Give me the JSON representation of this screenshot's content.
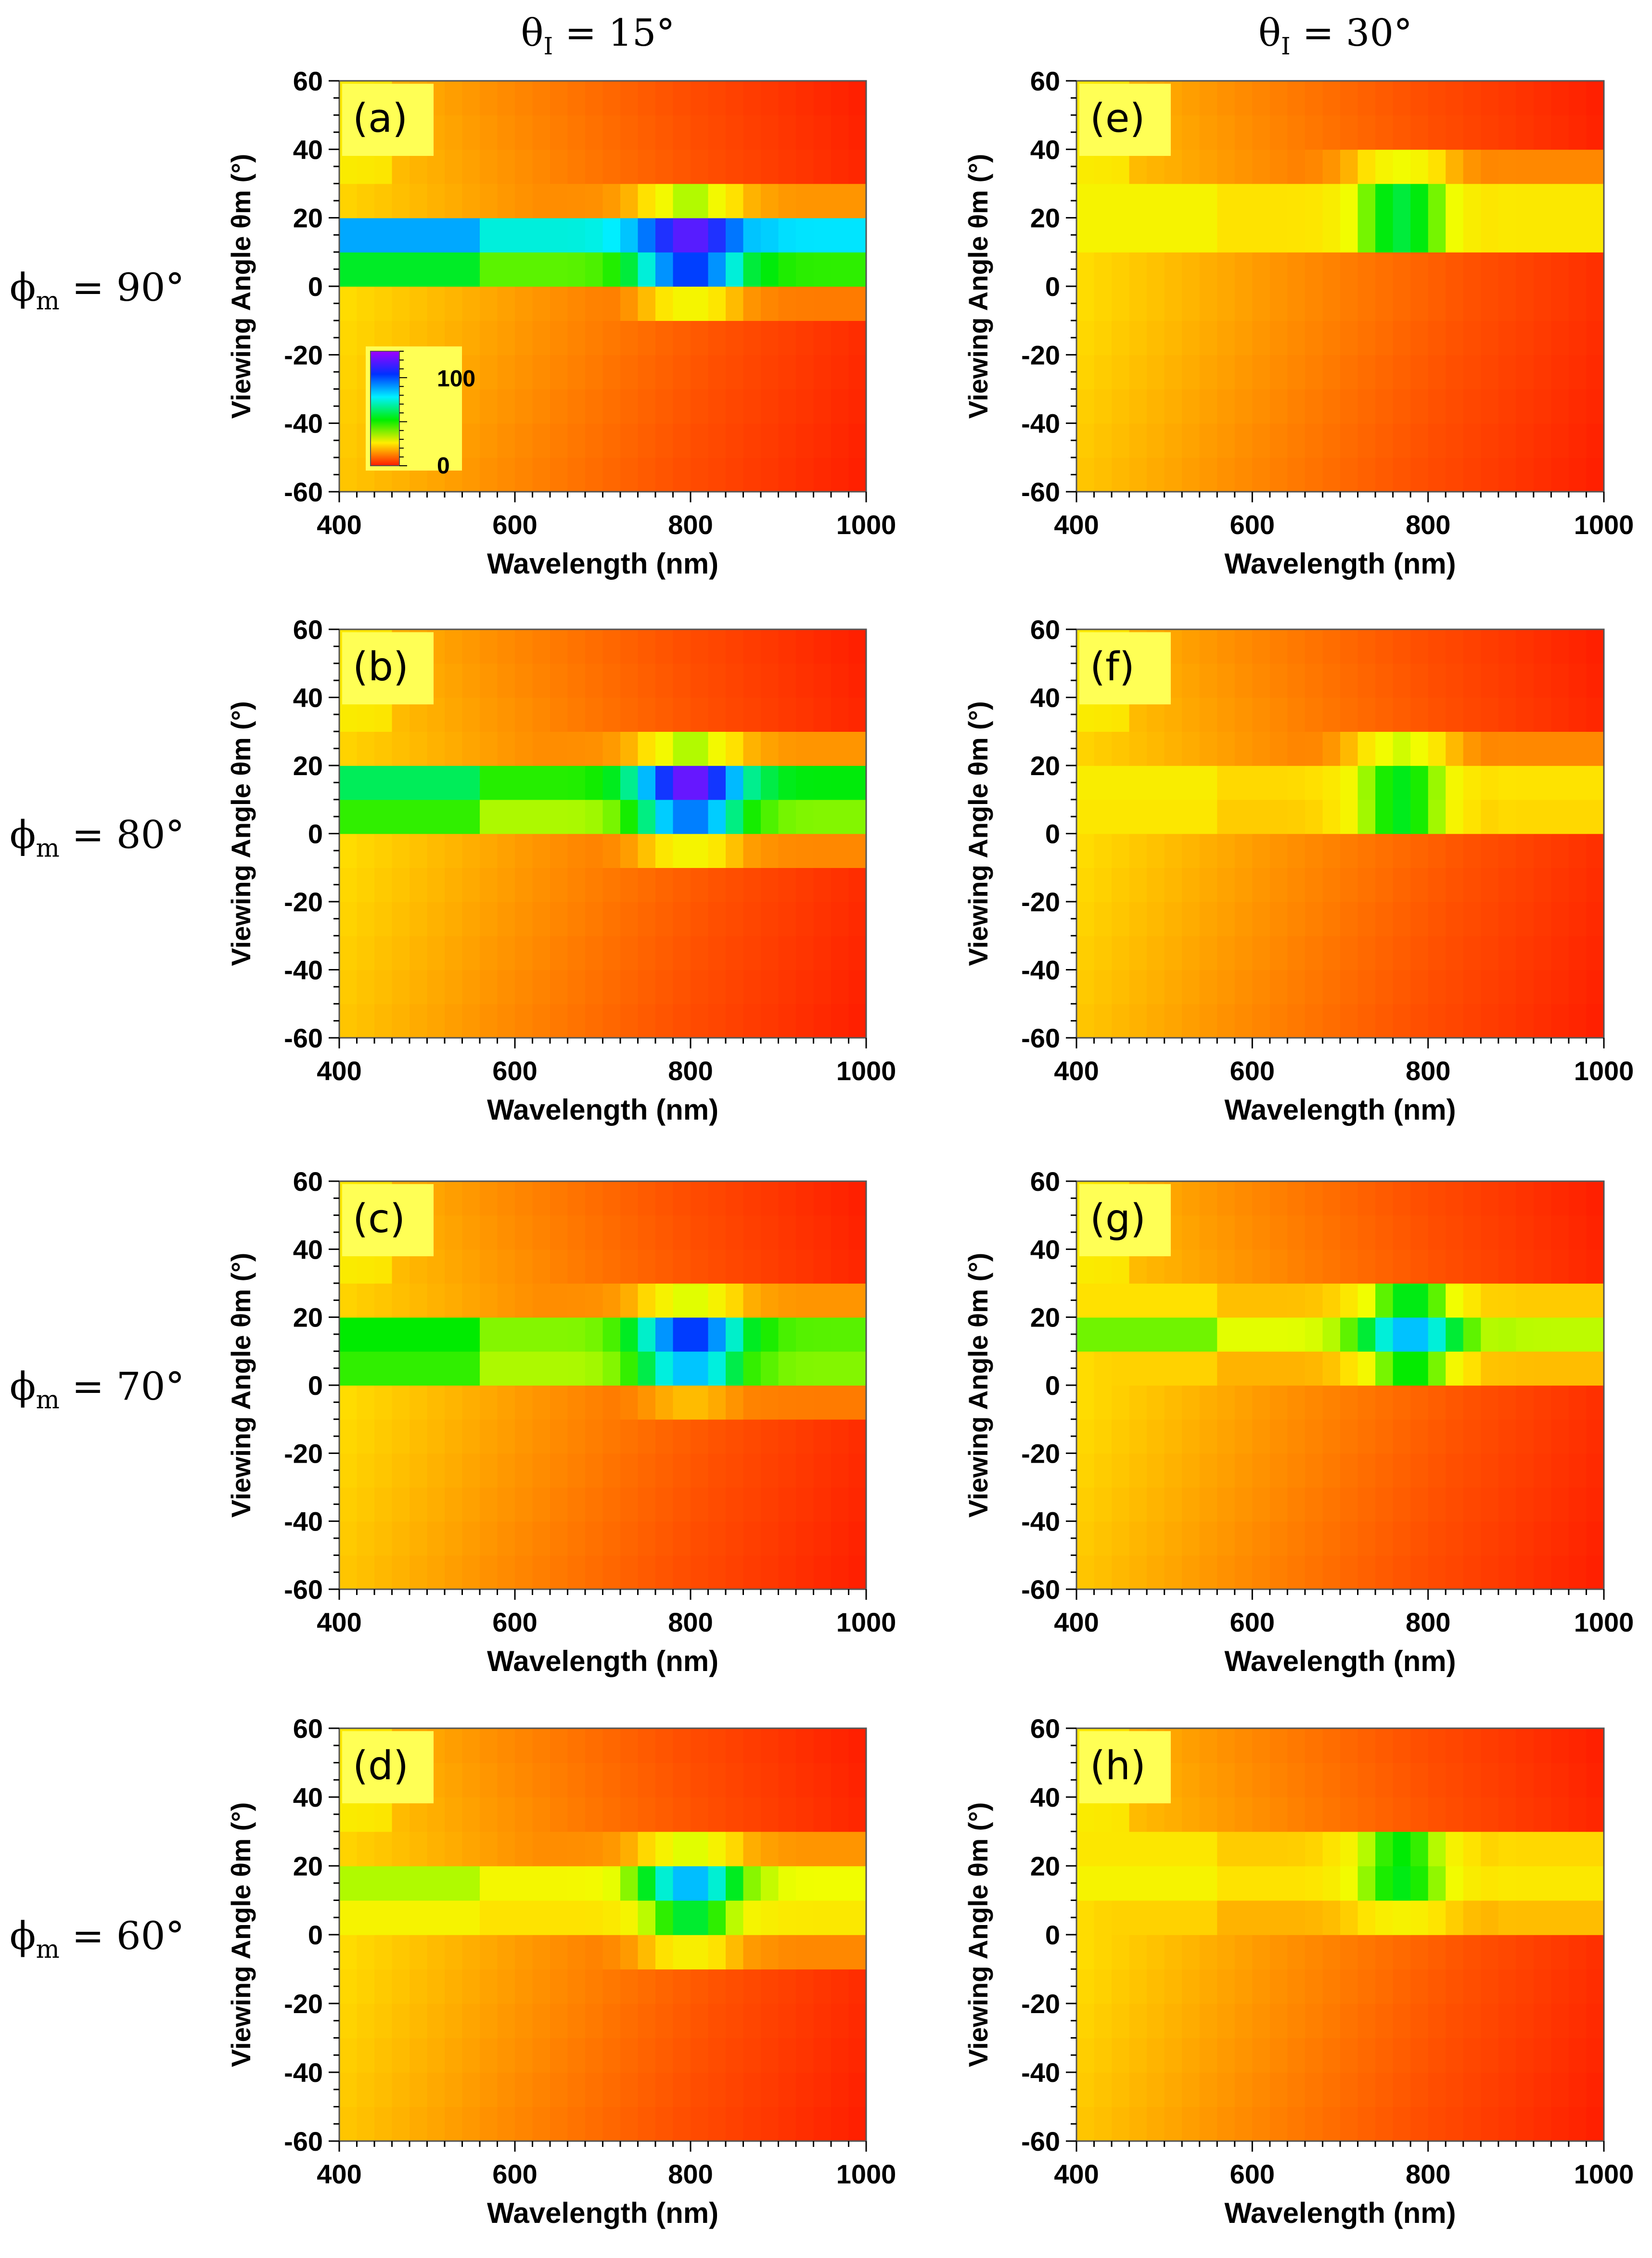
{
  "figure": {
    "column_headers": [
      "θ = 15°",
      "θ = 30°"
    ],
    "column_header_parts": [
      {
        "symbol": "θ",
        "sub": "I",
        "rest": " = 15°"
      },
      {
        "symbol": "θ",
        "sub": "I",
        "rest": " = 30°"
      }
    ],
    "row_labels": [
      {
        "symbol": "ϕ",
        "sub": "m",
        "rest": " = 90°"
      },
      {
        "symbol": "ϕ",
        "sub": "m",
        "rest": " = 80°"
      },
      {
        "symbol": "ϕ",
        "sub": "m",
        "rest": " = 70°"
      },
      {
        "symbol": "ϕ",
        "sub": "m",
        "rest": " = 60°"
      }
    ],
    "colorbar": {
      "panel": "a",
      "ticks": [
        "100",
        "0"
      ],
      "stops": [
        "#ff1a00",
        "#ffee00",
        "#00ee00",
        "#00f0ff",
        "#0030ff",
        "#a000ff"
      ]
    }
  },
  "chart_data": [
    {
      "panel": "a",
      "label": "(a)",
      "type": "heatmap",
      "theta_i": "15°",
      "phi_m": "90°",
      "xlabel": "Wavelength (nm)",
      "ylabel": "Viewing Angle θm (°)",
      "xlim": [
        400,
        1000
      ],
      "ylim": [
        -60,
        60
      ],
      "xticks": [
        "400",
        "600",
        "800",
        "1000"
      ],
      "yticks": [
        "60",
        "40",
        "20",
        "0",
        "-20",
        "-40",
        "-60"
      ],
      "colorbar_range": [
        0,
        130
      ],
      "peak_wavelength": 800,
      "bands": [
        {
          "y": [
            10,
            20
          ],
          "base": 85,
          "peak": 130
        },
        {
          "y": [
            0,
            10
          ],
          "base": 58,
          "peak": 110
        },
        {
          "y": [
            20,
            30
          ],
          "base": 22,
          "peak": 48
        },
        {
          "y": [
            -10,
            0
          ],
          "base": 18,
          "peak": 40
        }
      ]
    },
    {
      "panel": "b",
      "label": "(b)",
      "type": "heatmap",
      "theta_i": "15°",
      "phi_m": "80°",
      "xlabel": "Wavelength (nm)",
      "ylabel": "Viewing Angle θm (°)",
      "xlim": [
        400,
        1000
      ],
      "ylim": [
        -60,
        60
      ],
      "xticks": [
        "400",
        "600",
        "800",
        "1000"
      ],
      "yticks": [
        "60",
        "40",
        "20",
        "0",
        "-20",
        "-40",
        "-60"
      ],
      "peak_wavelength": 800,
      "bands": [
        {
          "y": [
            10,
            20
          ],
          "base": 62,
          "peak": 130
        },
        {
          "y": [
            0,
            10
          ],
          "base": 52,
          "peak": 100
        },
        {
          "y": [
            20,
            30
          ],
          "base": 22,
          "peak": 48
        },
        {
          "y": [
            -10,
            0
          ],
          "base": 20,
          "peak": 40
        }
      ]
    },
    {
      "panel": "c",
      "label": "(c)",
      "type": "heatmap",
      "theta_i": "15°",
      "phi_m": "70°",
      "xlabel": "Wavelength (nm)",
      "ylabel": "Viewing Angle θm (°)",
      "xlim": [
        400,
        1000
      ],
      "ylim": [
        -60,
        60
      ],
      "xticks": [
        "400",
        "600",
        "800",
        "1000"
      ],
      "yticks": [
        "60",
        "40",
        "20",
        "0",
        "-20",
        "-40",
        "-60"
      ],
      "peak_wavelength": 800,
      "bands": [
        {
          "y": [
            10,
            20
          ],
          "base": 55,
          "peak": 110
        },
        {
          "y": [
            0,
            10
          ],
          "base": 52,
          "peak": 90
        },
        {
          "y": [
            20,
            30
          ],
          "base": 22,
          "peak": 45
        },
        {
          "y": [
            -10,
            0
          ],
          "base": 18,
          "peak": 28
        }
      ]
    },
    {
      "panel": "d",
      "label": "(d)",
      "type": "heatmap",
      "theta_i": "15°",
      "phi_m": "60°",
      "xlabel": "Wavelength (nm)",
      "ylabel": "Viewing Angle θm (°)",
      "xlim": [
        400,
        1000
      ],
      "ylim": [
        -60,
        60
      ],
      "xticks": [
        "400",
        "600",
        "800",
        "1000"
      ],
      "yticks": [
        "60",
        "40",
        "20",
        "0",
        "-20",
        "-40",
        "-60"
      ],
      "peak_wavelength": 800,
      "bands": [
        {
          "y": [
            10,
            20
          ],
          "base": 44,
          "peak": 90
        },
        {
          "y": [
            0,
            10
          ],
          "base": 36,
          "peak": 65
        },
        {
          "y": [
            20,
            30
          ],
          "base": 22,
          "peak": 45
        },
        {
          "y": [
            -10,
            0
          ],
          "base": 20,
          "peak": 38
        }
      ]
    },
    {
      "panel": "e",
      "label": "(e)",
      "type": "heatmap",
      "theta_i": "30°",
      "phi_m": "90°",
      "xlabel": "Wavelength (nm)",
      "ylabel": "Viewing Angle θm (°)",
      "xlim": [
        400,
        1000
      ],
      "ylim": [
        -60,
        60
      ],
      "xticks": [
        "400",
        "600",
        "800",
        "1000"
      ],
      "yticks": [
        "60",
        "40",
        "20",
        "0",
        "-20",
        "-40",
        "-60"
      ],
      "peak_wavelength": 770,
      "bands": [
        {
          "y": [
            22,
            32
          ],
          "base": 36,
          "peak": 65
        },
        {
          "y": [
            12,
            22
          ],
          "base": 36,
          "peak": 65
        },
        {
          "y": [
            32,
            42
          ],
          "base": 20,
          "peak": 42
        }
      ]
    },
    {
      "panel": "f",
      "label": "(f)",
      "type": "heatmap",
      "theta_i": "30°",
      "phi_m": "80°",
      "xlabel": "Wavelength (nm)",
      "ylabel": "Viewing Angle θm (°)",
      "xlim": [
        400,
        1000
      ],
      "ylim": [
        -60,
        60
      ],
      "xticks": [
        "400",
        "600",
        "800",
        "1000"
      ],
      "yticks": [
        "60",
        "40",
        "20",
        "0",
        "-20",
        "-40",
        "-60"
      ],
      "peak_wavelength": 770,
      "bands": [
        {
          "y": [
            15,
            25
          ],
          "base": 34,
          "peak": 62
        },
        {
          "y": [
            5,
            15
          ],
          "base": 32,
          "peak": 62
        },
        {
          "y": [
            25,
            35
          ],
          "base": 20,
          "peak": 45
        }
      ]
    },
    {
      "panel": "g",
      "label": "(g)",
      "type": "heatmap",
      "theta_i": "30°",
      "phi_m": "70°",
      "xlabel": "Wavelength (nm)",
      "ylabel": "Viewing Angle θm (°)",
      "xlim": [
        400,
        1000
      ],
      "ylim": [
        -60,
        60
      ],
      "xticks": [
        "400",
        "600",
        "800",
        "1000"
      ],
      "yticks": [
        "60",
        "40",
        "20",
        "0",
        "-20",
        "-40",
        "-60"
      ],
      "peak_wavelength": 780,
      "bands": [
        {
          "y": [
            15,
            25
          ],
          "base": 48,
          "peak": 90
        },
        {
          "y": [
            25,
            35
          ],
          "base": 30,
          "peak": 62
        },
        {
          "y": [
            5,
            15
          ],
          "base": 28,
          "peak": 60
        }
      ]
    },
    {
      "panel": "h",
      "label": "(h)",
      "type": "heatmap",
      "theta_i": "30°",
      "phi_m": "60°",
      "xlabel": "Wavelength (nm)",
      "ylabel": "Viewing Angle θm (°)",
      "xlim": [
        400,
        1000
      ],
      "ylim": [
        -60,
        60
      ],
      "xticks": [
        "400",
        "600",
        "800",
        "1000"
      ],
      "yticks": [
        "60",
        "40",
        "20",
        "0",
        "-20",
        "-40",
        "-60"
      ],
      "peak_wavelength": 770,
      "bands": [
        {
          "y": [
            15,
            25
          ],
          "base": 36,
          "peak": 62
        },
        {
          "y": [
            25,
            35
          ],
          "base": 32,
          "peak": 60
        },
        {
          "y": [
            5,
            15
          ],
          "base": 28,
          "peak": 40
        }
      ]
    }
  ]
}
